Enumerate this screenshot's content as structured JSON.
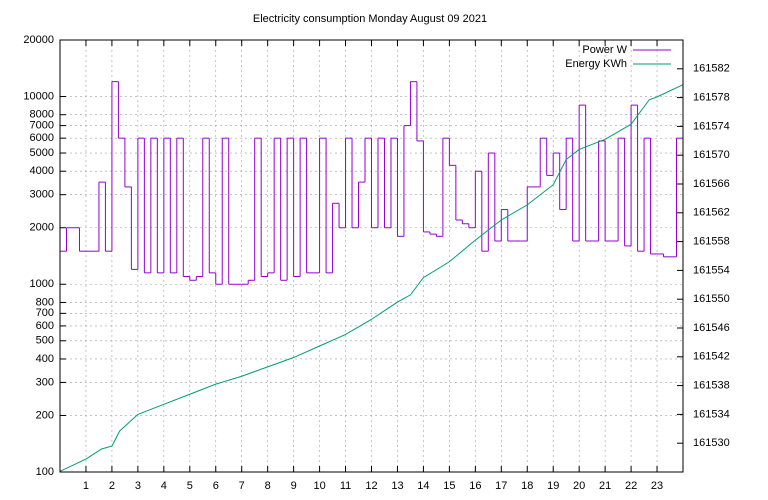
{
  "chart_data": {
    "type": "line",
    "title": "Electricity consumption Monday August 09 2021",
    "xlim": [
      0,
      24
    ],
    "xticks": [
      1,
      2,
      3,
      4,
      5,
      6,
      7,
      8,
      9,
      10,
      11,
      12,
      13,
      14,
      15,
      16,
      17,
      18,
      19,
      20,
      21,
      22,
      23
    ],
    "ylim": [
      100,
      20000
    ],
    "yscale": "log",
    "yticks": [
      100,
      200,
      300,
      400,
      500,
      600,
      700,
      800,
      1000,
      2000,
      3000,
      4000,
      5000,
      6000,
      7000,
      8000,
      10000,
      20000
    ],
    "y2lim": [
      161526,
      161586
    ],
    "y2ticks": [
      161530,
      161534,
      161538,
      161542,
      161546,
      161550,
      161554,
      161558,
      161562,
      161566,
      161570,
      161574,
      161578,
      161582
    ],
    "grid": true,
    "legend": "top-right",
    "series": [
      {
        "name": "Power W",
        "color": "#9400d3",
        "style": "steps",
        "x": [
          0,
          0.25,
          0.5,
          0.75,
          1,
          1.25,
          1.5,
          1.75,
          2,
          2.25,
          2.5,
          2.75,
          3,
          3.25,
          3.5,
          3.75,
          4,
          4.25,
          4.5,
          4.75,
          5,
          5.25,
          5.5,
          5.75,
          6,
          6.25,
          6.5,
          6.75,
          7,
          7.25,
          7.5,
          7.75,
          8,
          8.25,
          8.5,
          8.75,
          9,
          9.25,
          9.5,
          9.75,
          10,
          10.25,
          10.5,
          10.75,
          11,
          11.25,
          11.5,
          11.75,
          12,
          12.25,
          12.5,
          12.75,
          13,
          13.25,
          13.5,
          13.75,
          14,
          14.25,
          14.5,
          14.75,
          15,
          15.25,
          15.5,
          15.75,
          16,
          16.25,
          16.5,
          16.75,
          17,
          17.25,
          17.5,
          17.75,
          18,
          18.25,
          18.5,
          18.75,
          19,
          19.25,
          19.5,
          19.75,
          20,
          20.25,
          20.5,
          20.75,
          21,
          21.25,
          21.5,
          21.75,
          22,
          22.25,
          22.5,
          22.75,
          23,
          23.25,
          23.5,
          23.75
        ],
        "values": [
          1500,
          2000,
          2000,
          1500,
          1500,
          1500,
          3500,
          1500,
          12000,
          6000,
          3300,
          1200,
          6000,
          1150,
          6000,
          1150,
          6000,
          1150,
          6000,
          1100,
          1050,
          1100,
          6000,
          1150,
          1000,
          6000,
          1000,
          1000,
          1000,
          1050,
          6000,
          1100,
          1150,
          6000,
          1050,
          6000,
          1100,
          6000,
          1150,
          1150,
          6000,
          1150,
          2700,
          2000,
          6000,
          2000,
          3500,
          6000,
          2000,
          6000,
          2000,
          6000,
          1800,
          7000,
          12000,
          5800,
          1900,
          1850,
          1800,
          6000,
          4300,
          2200,
          2100,
          2000,
          4000,
          1500,
          5000,
          1700,
          2500,
          1700,
          1700,
          1700,
          3300,
          3300,
          6000,
          3800,
          5000,
          2500,
          6000,
          1700,
          9000,
          1700,
          1700,
          5800,
          1700,
          1700,
          6000,
          1600,
          9000,
          1500,
          6000,
          1450,
          1450,
          1400,
          1400,
          6000
        ]
      },
      {
        "name": "Energy KWh",
        "color": "#009e73",
        "axis": "y2",
        "x": [
          0,
          1,
          1.6,
          2,
          2.3,
          3,
          4,
          5,
          6,
          7,
          8,
          9,
          10,
          11,
          12,
          13,
          13.5,
          14,
          15,
          16,
          17,
          18,
          19,
          19.5,
          20,
          21,
          22,
          22.7,
          23,
          24
        ],
        "values": [
          161526.1,
          161527.8,
          161529.2,
          161529.6,
          161531.7,
          161534.0,
          161535.4,
          161536.8,
          161538.2,
          161539.3,
          161540.6,
          161541.9,
          161543.5,
          161545.1,
          161547.2,
          161549.6,
          161550.6,
          161553.0,
          161555.2,
          161558.2,
          161561.0,
          161563.1,
          161565.9,
          161569.4,
          161570.8,
          161572.2,
          161574.3,
          161577.7,
          161578.1,
          161579.8
        ]
      }
    ]
  }
}
